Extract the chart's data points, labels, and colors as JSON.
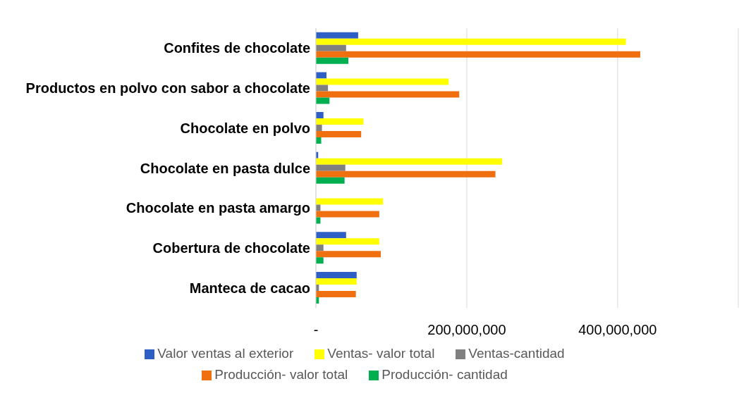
{
  "chart_data": {
    "type": "bar",
    "orientation": "horizontal",
    "categories": [
      "Confites de chocolate",
      "Productos en polvo con sabor a chocolate",
      "Chocolate en polvo",
      "Chocolate en pasta dulce",
      "Chocolate en pasta amargo",
      "Cobertura de chocolate",
      "Manteca de cacao"
    ],
    "series": [
      {
        "name": "Valor ventas al exterior",
        "color": "#2e5fc4",
        "values": [
          56000000,
          14000000,
          10000000,
          3000000,
          null,
          40000000,
          54000000
        ]
      },
      {
        "name": "Ventas- valor total",
        "color": "#ffff00",
        "values": [
          411000000,
          176000000,
          63000000,
          247000000,
          89000000,
          84000000,
          54000000
        ]
      },
      {
        "name": "Ventas-cantidad",
        "color": "#808080",
        "values": [
          40000000,
          16000000,
          8000000,
          39000000,
          6000000,
          10000000,
          4000000
        ]
      },
      {
        "name": "Producción- valor total",
        "color": "#f07010",
        "values": [
          430000000,
          190000000,
          60000000,
          238000000,
          84000000,
          86000000,
          53000000
        ]
      },
      {
        "name": "Producción- cantidad",
        "color": "#00b050",
        "values": [
          43000000,
          18000000,
          7000000,
          38000000,
          6000000,
          10000000,
          4000000
        ]
      }
    ],
    "xlim": [
      0,
      560000000
    ],
    "xticks": [
      {
        "value": 0,
        "label": "-"
      },
      {
        "value": 200000000,
        "label": "200,000,000"
      },
      {
        "value": 400000000,
        "label": "400,000,000"
      }
    ],
    "grid": "x",
    "legend": "bottom"
  }
}
